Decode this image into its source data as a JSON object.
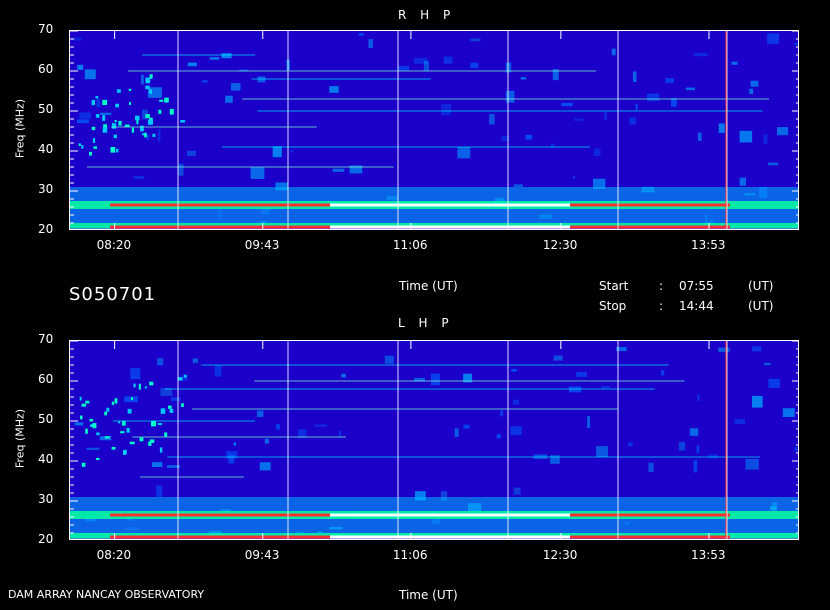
{
  "id_label": "S050701",
  "footer_label": "DAM ARRAY  NANCAY OBSERVATORY",
  "time_info": {
    "start_label": "Start",
    "start_sep": ":",
    "start_value": "07:55",
    "start_unit": "(UT)",
    "stop_label": "Stop",
    "stop_sep": ":",
    "stop_value": "14:44",
    "stop_unit": "(UT)"
  },
  "colors": {
    "background": "#000000",
    "low": "#1a00c8",
    "mid": "#00ff9c",
    "high": "#ff2020",
    "peak": "#ffffff"
  },
  "chart_data": [
    {
      "type": "heatmap",
      "title": "R H P",
      "xlabel": "Time (UT)",
      "ylabel": "Freq (MHz)",
      "xticks": [
        "08:20",
        "09:43",
        "11:06",
        "12:30",
        "13:53"
      ],
      "yticks": [
        "20",
        "30",
        "40",
        "50",
        "60",
        "70"
      ],
      "ylim": [
        20,
        70
      ],
      "xlim": [
        "07:55",
        "14:44"
      ],
      "bright_bands_mhz": [
        21,
        26.5
      ],
      "colormap": "blue-cyan-green-yellow-red-white"
    },
    {
      "type": "heatmap",
      "title": "L H P",
      "xlabel": "Time (UT)",
      "ylabel": "Freq (MHz)",
      "xticks": [
        "08:20",
        "09:43",
        "11:06",
        "12:30",
        "13:53"
      ],
      "yticks": [
        "20",
        "30",
        "40",
        "50",
        "60",
        "70"
      ],
      "ylim": [
        20,
        70
      ],
      "xlim": [
        "07:55",
        "14:44"
      ],
      "bright_bands_mhz": [
        21,
        26.5
      ],
      "colormap": "blue-cyan-green-yellow-red-white"
    }
  ]
}
